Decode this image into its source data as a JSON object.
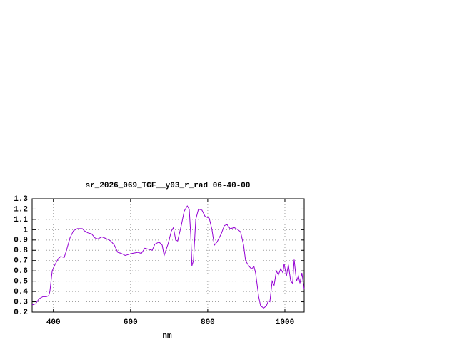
{
  "chart_data": {
    "type": "line",
    "title": "sr_2026_069_TGF__y03_r_rad 06-40-00",
    "x_label": "nm",
    "xlim": [
      345,
      1050
    ],
    "xticks": [
      400,
      600,
      800,
      1000
    ],
    "ylim": [
      0.2,
      1.3
    ],
    "yticks": [
      0.2,
      0.3,
      0.4,
      0.5,
      0.6,
      0.7,
      0.8,
      0.9,
      1,
      1.1,
      1.2,
      1.3
    ],
    "grid": true,
    "series": [
      {
        "color": "#9400d3",
        "x": [
          345,
          354,
          363,
          373,
          382,
          388,
          391,
          397,
          404,
          413,
          419,
          428,
          434,
          443,
          452,
          462,
          475,
          480,
          489,
          499,
          508,
          515,
          526,
          539,
          549,
          558,
          567,
          576,
          586,
          595,
          604,
          619,
          628,
          637,
          647,
          656,
          663,
          674,
          682,
          687,
          697,
          706,
          711,
          717,
          722,
          732,
          739,
          747,
          752,
          756,
          759,
          763,
          769,
          776,
          785,
          793,
          804,
          811,
          817,
          824,
          835,
          843,
          850,
          858,
          869,
          878,
          885,
          893,
          898,
          906,
          913,
          920,
          924,
          932,
          937,
          945,
          952,
          957,
          961,
          967,
          972,
          978,
          983,
          989,
          995,
          998,
          1004,
          1009,
          1015,
          1020,
          1024,
          1030,
          1035,
          1039,
          1044,
          1050
        ],
        "values": [
          0.27,
          0.28,
          0.33,
          0.35,
          0.35,
          0.36,
          0.4,
          0.6,
          0.66,
          0.72,
          0.74,
          0.73,
          0.8,
          0.92,
          0.99,
          1.01,
          1.01,
          0.99,
          0.97,
          0.96,
          0.92,
          0.91,
          0.93,
          0.91,
          0.89,
          0.85,
          0.78,
          0.77,
          0.75,
          0.76,
          0.77,
          0.78,
          0.77,
          0.82,
          0.81,
          0.8,
          0.86,
          0.88,
          0.85,
          0.75,
          0.86,
          0.99,
          1.02,
          0.9,
          0.89,
          1.05,
          1.18,
          1.23,
          1.2,
          0.95,
          0.65,
          0.7,
          1.1,
          1.2,
          1.19,
          1.13,
          1.11,
          1.0,
          0.85,
          0.88,
          0.96,
          1.04,
          1.05,
          1.01,
          1.02,
          1.0,
          0.98,
          0.85,
          0.7,
          0.65,
          0.62,
          0.64,
          0.58,
          0.35,
          0.26,
          0.24,
          0.26,
          0.31,
          0.3,
          0.5,
          0.46,
          0.6,
          0.56,
          0.62,
          0.58,
          0.67,
          0.55,
          0.66,
          0.5,
          0.48,
          0.71,
          0.5,
          0.55,
          0.48,
          0.58,
          0.42
        ]
      }
    ]
  }
}
